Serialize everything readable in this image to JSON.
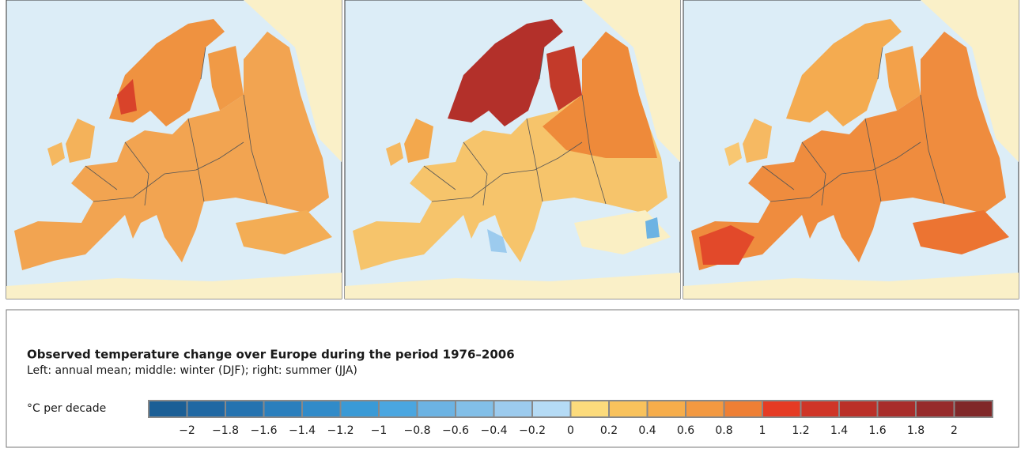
{
  "legend": {
    "title": "Observed temperature change over Europe during the period 1976–2006",
    "subtitle": "Left: annual mean; middle: winter (DJF); right: summer (JJA)",
    "unit": "°C per decade",
    "ticks": [
      {
        "value": -2,
        "label": "−2"
      },
      {
        "value": -1.8,
        "label": "−1.8"
      },
      {
        "value": -1.6,
        "label": "−1.6"
      },
      {
        "value": -1.4,
        "label": "−1.4"
      },
      {
        "value": -1.2,
        "label": "−1.2"
      },
      {
        "value": -1,
        "label": "−1"
      },
      {
        "value": -0.8,
        "label": "−0.8"
      },
      {
        "value": -0.6,
        "label": "−0.6"
      },
      {
        "value": -0.4,
        "label": "−0.4"
      },
      {
        "value": -0.2,
        "label": "−0.2"
      },
      0,
      0.2,
      0.4,
      0.6,
      0.8,
      1,
      1.2,
      1.4,
      1.6,
      1.8,
      2
    ],
    "colors": [
      "#1b5f96",
      "#2068a3",
      "#2573b0",
      "#2a7fbd",
      "#318bc9",
      "#3a9ad6",
      "#4aa6e0",
      "#6cb3e3",
      "#82bfe8",
      "#9ccbee",
      "#b5dbf5",
      "#fcdb7c",
      "#f9c25c",
      "#f6ad4b",
      "#f39941",
      "#ee7f34",
      "#e53b24",
      "#cf3527",
      "#ba3028",
      "#a82d2a",
      "#962b2b",
      "#802829"
    ]
  }
}
